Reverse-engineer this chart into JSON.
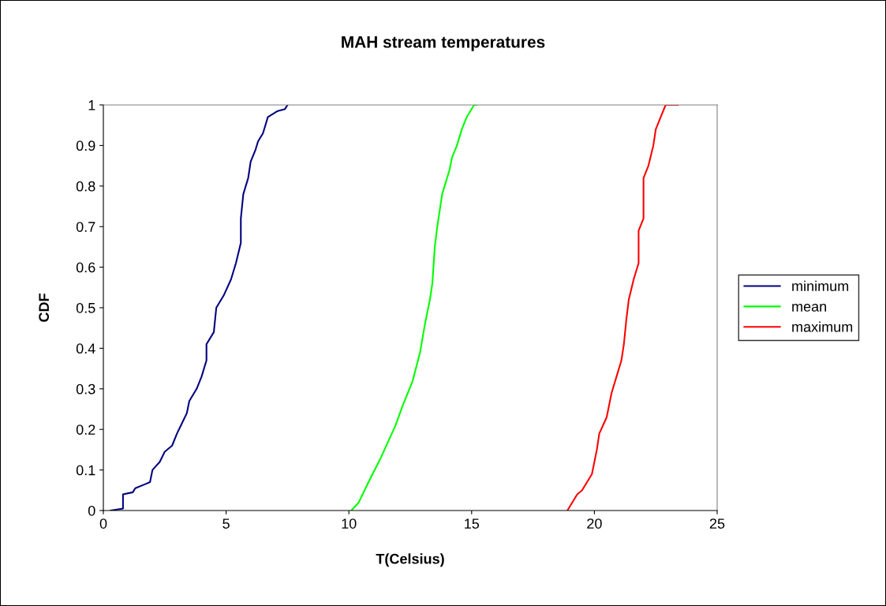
{
  "chart_data": {
    "type": "line",
    "title": "MAH stream temperatures",
    "xlabel": "T(Celsius)",
    "ylabel": "CDF",
    "xlim": [
      0,
      25
    ],
    "xticks": [
      0,
      5,
      10,
      15,
      20,
      25
    ],
    "ylim": [
      0,
      1
    ],
    "yticks": [
      0,
      0.1,
      0.2,
      0.3,
      0.4,
      0.5,
      0.6,
      0.7,
      0.8,
      0.9,
      1
    ],
    "grid": false,
    "legend": "right",
    "marker": "none",
    "line_style": "solid",
    "series": [
      {
        "name": "minimum",
        "color": "#000080",
        "x": [
          0.3,
          0.8,
          0.8,
          1.2,
          1.3,
          1.7,
          1.9,
          2.0,
          2.3,
          2.5,
          2.8,
          3.0,
          3.2,
          3.4,
          3.5,
          3.8,
          4.0,
          4.2,
          4.2,
          4.5,
          4.6,
          4.9,
          5.2,
          5.4,
          5.6,
          5.6,
          5.7,
          5.9,
          6.0,
          6.2,
          6.3,
          6.5,
          6.6,
          6.7,
          7.1,
          7.4,
          7.5
        ],
        "values": [
          0.0,
          0.005,
          0.04,
          0.045,
          0.055,
          0.065,
          0.07,
          0.1,
          0.12,
          0.145,
          0.16,
          0.19,
          0.215,
          0.24,
          0.27,
          0.3,
          0.33,
          0.37,
          0.41,
          0.44,
          0.5,
          0.53,
          0.57,
          0.61,
          0.66,
          0.72,
          0.78,
          0.82,
          0.86,
          0.89,
          0.91,
          0.93,
          0.95,
          0.97,
          0.985,
          0.99,
          1.0
        ]
      },
      {
        "name": "mean",
        "color": "#00ff00",
        "x": [
          10.1,
          10.4,
          10.8,
          11.3,
          11.9,
          12.2,
          12.6,
          12.9,
          13.1,
          13.3,
          13.4,
          13.5,
          13.6,
          13.8,
          14.1,
          14.2,
          14.4,
          14.6,
          14.8,
          15.1,
          15.2
        ],
        "values": [
          0.0,
          0.02,
          0.07,
          0.13,
          0.21,
          0.26,
          0.32,
          0.39,
          0.46,
          0.52,
          0.56,
          0.65,
          0.7,
          0.78,
          0.84,
          0.87,
          0.9,
          0.94,
          0.97,
          1.0,
          1.0
        ]
      },
      {
        "name": "maximum",
        "color": "#ff0000",
        "x": [
          18.9,
          19.3,
          19.5,
          19.9,
          20.1,
          20.2,
          20.5,
          20.7,
          20.9,
          21.1,
          21.2,
          21.3,
          21.4,
          21.6,
          21.8,
          21.8,
          22.0,
          22.0,
          22.2,
          22.4,
          22.5,
          22.7,
          22.9,
          23.4
        ],
        "values": [
          0.0,
          0.04,
          0.05,
          0.09,
          0.15,
          0.19,
          0.23,
          0.29,
          0.33,
          0.37,
          0.41,
          0.47,
          0.52,
          0.57,
          0.61,
          0.69,
          0.72,
          0.82,
          0.85,
          0.9,
          0.94,
          0.97,
          1.0,
          1.0
        ]
      }
    ]
  }
}
